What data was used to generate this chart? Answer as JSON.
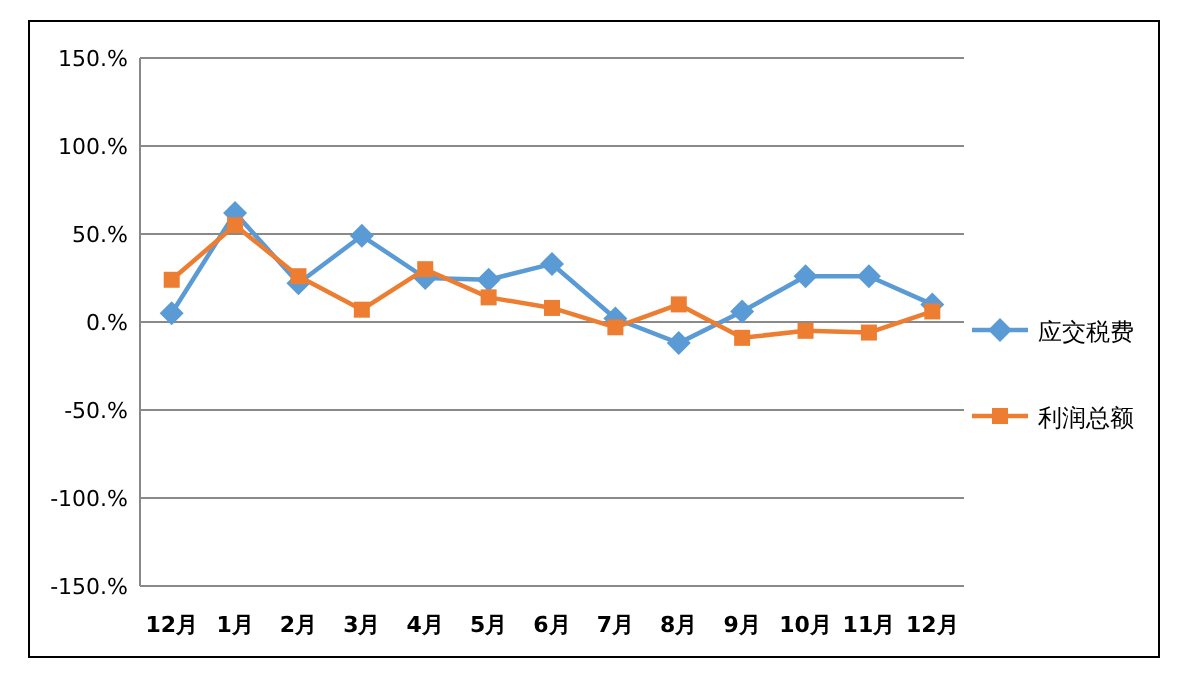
{
  "chart_data": {
    "type": "line",
    "categories": [
      "12月",
      "1月",
      "2月",
      "3月",
      "4月",
      "5月",
      "6月",
      "7月",
      "8月",
      "9月",
      "10月",
      "11月",
      "12月"
    ],
    "series": [
      {
        "name": "应交税费",
        "color": "#5b9bd5",
        "marker": "diamond",
        "values": [
          5,
          62,
          22,
          49,
          25,
          24,
          33,
          2,
          -12,
          6,
          26,
          26,
          10
        ]
      },
      {
        "name": "利润总额",
        "color": "#ed7d31",
        "marker": "square",
        "values": [
          24,
          55,
          26,
          7,
          30,
          14,
          8,
          -3,
          10,
          -9,
          -5,
          -6,
          6
        ]
      }
    ],
    "ylim": [
      -150,
      150
    ],
    "yticks": [
      {
        "value": -150,
        "label": "-150.%"
      },
      {
        "value": -100,
        "label": "-100.%"
      },
      {
        "value": -50,
        "label": "-50.%"
      },
      {
        "value": 0,
        "label": "0.%"
      },
      {
        "value": 50,
        "label": "50.%"
      },
      {
        "value": 100,
        "label": "100.%"
      },
      {
        "value": 150,
        "label": "150.%"
      }
    ],
    "grid": "y",
    "legend": "right"
  }
}
